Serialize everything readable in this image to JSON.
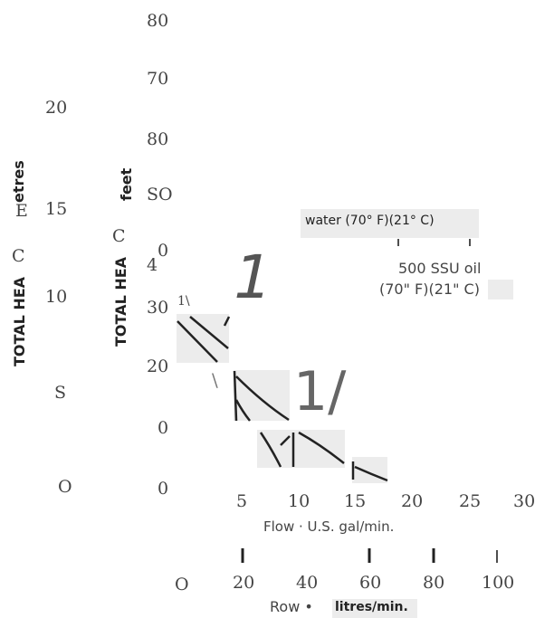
{
  "chart_data": {
    "type": "line",
    "feet_tick_labels": [
      "80",
      "70",
      "80",
      "SO",
      "0",
      "4",
      "30",
      "20",
      "0",
      "0"
    ],
    "metres_tick_labels": [
      "20",
      "15",
      "10",
      "S",
      "O"
    ],
    "metres_axis_label": "TOTAL HEA",
    "metres_axis_label_tail": "etres",
    "metres_axis_letters": [
      "E",
      "C"
    ],
    "feet_axis_label": "TOTAL HEA",
    "feet_axis_label_tail": "feet",
    "feet_axis_letter": "C",
    "flow_us_ticks": [
      "5",
      "10",
      "15",
      "20",
      "25",
      "30"
    ],
    "flow_us_label": "Flow · U.S. gal/min.",
    "flow_metric_ticks": [
      "O",
      "20",
      "40",
      "60",
      "80",
      "100"
    ],
    "flow_metric_label_prefix": "Row •",
    "flow_metric_label_unit": "litres/min.",
    "series": [
      {
        "name": "water (70° F)(21° C)"
      },
      {
        "name_line1": "500 SSU oil",
        "name_line2": "(70\" F)(21\" C)"
      }
    ],
    "artifacts": {
      "big_mark_upper": "1",
      "big_mark_lower": "1/",
      "small_mark": "1\\",
      "slash_mark": "\\"
    }
  }
}
